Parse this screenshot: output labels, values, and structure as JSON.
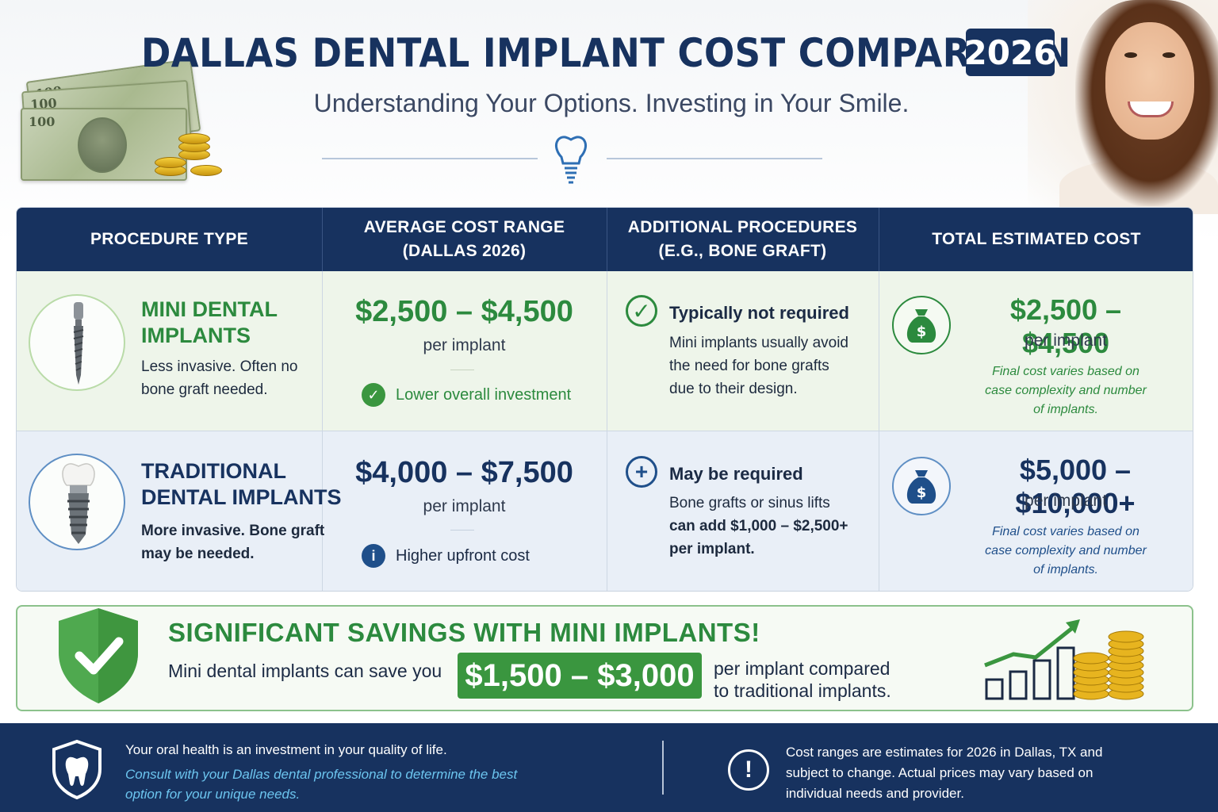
{
  "header": {
    "title": "DALLAS DENTAL IMPLANT COST COMPARISON",
    "year": "2026",
    "subtitle": "Understanding Your Options. Investing in Your Smile."
  },
  "table": {
    "columns": [
      "PROCEDURE TYPE",
      "AVERAGE COST RANGE\n(DALLAS 2026)",
      "ADDITIONAL PROCEDURES\n(E.G., BONE GRAFT)",
      "TOTAL ESTIMATED COST"
    ],
    "rows": [
      {
        "name": "MINI DENTAL\nIMPLANTS",
        "description": "Less invasive. Often no\nbone graft needed.",
        "cost_range": "$2,500 – $4,500",
        "cost_unit": "per implant",
        "cost_note": "Lower overall investment",
        "additional_title": "Typically not required",
        "additional_desc": "Mini implants usually avoid\nthe need for bone grafts\ndue to their design.",
        "total": "$2,500 – $4,500",
        "total_unit": "per implant",
        "total_note": "Final cost varies based on\ncase complexity and number\nof implants."
      },
      {
        "name": "TRADITIONAL\nDENTAL IMPLANTS",
        "description": "More invasive. Bone graft\nmay be needed.",
        "cost_range": "$4,000 – $7,500",
        "cost_unit": "per implant",
        "cost_note": "Higher upfront cost",
        "additional_title": "May be required",
        "additional_desc_1": "Bone grafts or sinus lifts",
        "additional_desc_2": "can add $1,000 – $2,500+\nper implant.",
        "total": "$5,000 – $10,000+",
        "total_unit": "per implant",
        "total_note": "Final cost varies based on\ncase complexity and number\nof implants."
      }
    ]
  },
  "savings": {
    "title": "SIGNIFICANT SAVINGS WITH MINI IMPLANTS!",
    "lead": "Mini dental implants can save you",
    "amount": "$1,500 – $3,000",
    "tail": "per implant compared\nto traditional implants."
  },
  "footer": {
    "left_line1": "Your oral health is an investment in your quality of life.",
    "left_line2": "Consult with your Dallas dental professional to determine the best\noption for your unique needs.",
    "right": "Cost ranges are estimates for 2026 in Dallas, TX and\nsubject to change. Actual prices may vary based on\nindividual needs and provider."
  },
  "colors": {
    "navy": "#17325f",
    "green": "#2c8a3e",
    "mini_row_bg": "#eef5ea",
    "trad_row_bg": "#e9eff7",
    "highlight_green": "#3a963f",
    "footer_italic": "#6cc5ef"
  },
  "icons": {
    "header_divider": "tooth-implant-icon",
    "mini_cost_note": "check-circle-icon",
    "trad_cost_note": "info-icon",
    "mini_additional": "check-circle-outline-icon",
    "trad_additional": "plus-circle-icon",
    "total": "money-bag-icon",
    "savings": "shield-check-icon",
    "savings_chart": "growth-chart-coins-icon",
    "footer_left": "shield-tooth-icon",
    "footer_right": "exclamation-circle-icon"
  }
}
